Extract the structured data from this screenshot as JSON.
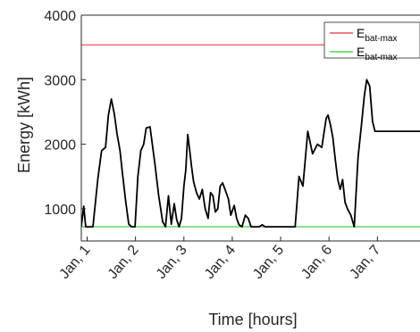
{
  "chart_data": {
    "type": "line",
    "title": "",
    "xlabel": "Time [hours]",
    "ylabel": "Energy [kWh]",
    "xlim": [
      0.88,
      7.88
    ],
    "ylim": [
      500,
      4000
    ],
    "yticks": [
      1000,
      2000,
      3000,
      4000
    ],
    "xticks": [
      {
        "value": 1,
        "label": "Jan, 1"
      },
      {
        "value": 2,
        "label": "Jan, 2"
      },
      {
        "value": 3,
        "label": "Jan, 3"
      },
      {
        "value": 4,
        "label": "Jan, 4"
      },
      {
        "value": 5,
        "label": "Jan, 5"
      },
      {
        "value": 6,
        "label": "Jan, 6"
      },
      {
        "value": 7,
        "label": "Jan, 7"
      }
    ],
    "grid": false,
    "legend_position": "top-right",
    "legend": [
      {
        "base": "E",
        "sub": "bat-max",
        "color": "#e0303a"
      },
      {
        "base": "E",
        "sub": "bat-max",
        "color": "#2ecc2e"
      }
    ],
    "series": [
      {
        "style": "hline",
        "value": 3540,
        "color": "#e0303a"
      },
      {
        "style": "hline",
        "value": 720,
        "color": "#2ecc2e"
      },
      {
        "style": "line",
        "color": "#000000",
        "x": [
          0.88,
          0.93,
          0.97,
          1.02,
          1.12,
          1.22,
          1.3,
          1.38,
          1.44,
          1.5,
          1.56,
          1.62,
          1.68,
          1.73,
          1.8,
          1.86,
          1.92,
          1.99,
          2.05,
          2.11,
          2.17,
          2.22,
          2.3,
          2.4,
          2.48,
          2.56,
          2.62,
          2.68,
          2.74,
          2.8,
          2.85,
          2.9,
          2.95,
          3.0,
          3.04,
          3.08,
          3.12,
          3.16,
          3.2,
          3.26,
          3.32,
          3.38,
          3.44,
          3.5,
          3.55,
          3.6,
          3.65,
          3.7,
          3.75,
          3.8,
          3.85,
          3.92,
          3.97,
          4.04,
          4.09,
          4.14,
          4.2,
          4.27,
          4.33,
          4.39,
          4.47,
          4.55,
          4.62,
          4.68,
          4.74,
          4.8,
          4.86,
          4.92,
          5.0,
          5.06,
          5.12,
          5.2,
          5.3,
          5.38,
          5.46,
          5.56,
          5.66,
          5.76,
          5.85,
          5.9,
          5.94,
          5.98,
          6.03,
          6.08,
          6.13,
          6.18,
          6.23,
          6.28,
          6.33,
          6.38,
          6.45,
          6.52,
          6.6,
          6.67,
          6.73,
          6.78,
          6.84,
          6.9,
          6.95,
          7.0,
          7.05,
          7.1,
          7.15,
          7.2,
          7.3,
          7.36,
          7.42,
          7.48,
          7.53,
          7.58,
          7.64,
          7.7,
          7.76,
          7.82,
          7.88
        ],
        "y": [
          720,
          1040,
          720,
          720,
          720,
          1450,
          1900,
          1950,
          2450,
          2700,
          2480,
          2150,
          1900,
          1550,
          1100,
          760,
          720,
          720,
          1500,
          1900,
          2000,
          2250,
          2270,
          1700,
          1200,
          800,
          720,
          1200,
          760,
          1080,
          830,
          720,
          850,
          1350,
          1600,
          2150,
          1900,
          1650,
          1420,
          1250,
          1150,
          1300,
          1000,
          850,
          1250,
          1200,
          950,
          1000,
          1350,
          1400,
          1300,
          1150,
          900,
          1050,
          850,
          750,
          720,
          900,
          850,
          720,
          720,
          720,
          750,
          720,
          720,
          720,
          720,
          720,
          720,
          720,
          720,
          720,
          720,
          1500,
          1350,
          2200,
          1850,
          2000,
          1950,
          2200,
          2400,
          2450,
          2300,
          2100,
          1750,
          1450,
          1300,
          1450,
          1100,
          1000,
          900,
          720,
          1800,
          2300,
          2750,
          3000,
          2900,
          2350,
          2200,
          2200,
          2200,
          2200,
          2200,
          2200,
          2200,
          2200,
          2200,
          2200,
          2200,
          2200,
          2200,
          2200,
          2200,
          2200,
          2200
        ]
      }
    ]
  }
}
